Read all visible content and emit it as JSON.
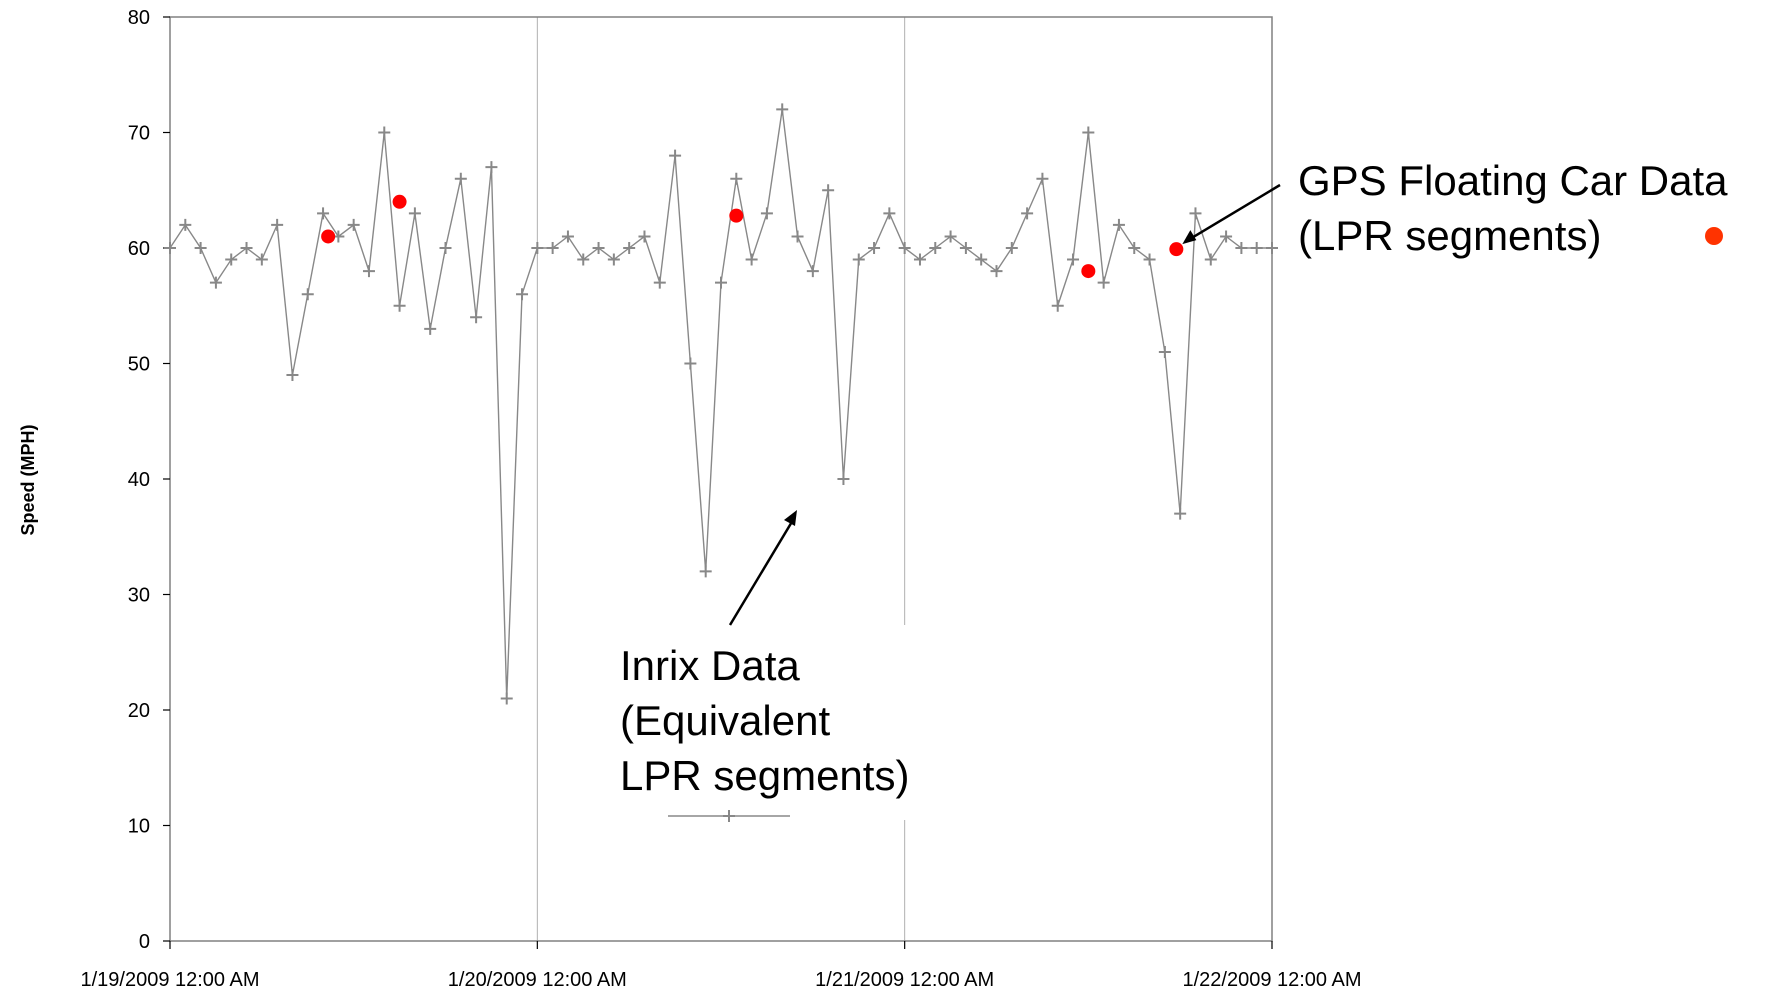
{
  "chart_data": {
    "type": "line",
    "title": "",
    "xlabel": "",
    "ylabel": "Speed (MPH)",
    "ylim": [
      0,
      80
    ],
    "y_ticks": [
      0,
      10,
      20,
      30,
      40,
      50,
      60,
      70,
      80
    ],
    "xlim": [
      "1/19/2009 12:00 AM",
      "1/22/2009 12:00 AM"
    ],
    "x_ticks": [
      "1/19/2009 12:00 AM",
      "1/20/2009 12:00 AM",
      "1/21/2009 12:00 AM",
      "1/22/2009 12:00 AM"
    ],
    "grid": "vertical lines at day boundaries",
    "legend": "annotations at right",
    "colors": {
      "inrix": "#888888",
      "gps": "#ff0000",
      "axis": "#808080"
    },
    "series": [
      {
        "name": "Inrix Data (Equivalent LPR segments)",
        "marker": "plus",
        "x": [
          "1/19/2009 12:00 AM",
          "1/19/2009 1:00 AM",
          "1/19/2009 2:00 AM",
          "1/19/2009 3:00 AM",
          "1/19/2009 4:00 AM",
          "1/19/2009 5:00 AM",
          "1/19/2009 6:00 AM",
          "1/19/2009 7:00 AM",
          "1/19/2009 8:00 AM",
          "1/19/2009 9:00 AM",
          "1/19/2009 10:00 AM",
          "1/19/2009 11:00 AM",
          "1/19/2009 12:00 PM",
          "1/19/2009 1:00 PM",
          "1/19/2009 2:00 PM",
          "1/19/2009 3:00 PM",
          "1/19/2009 4:00 PM",
          "1/19/2009 5:00 PM",
          "1/19/2009 6:00 PM",
          "1/19/2009 7:00 PM",
          "1/19/2009 8:00 PM",
          "1/19/2009 9:00 PM",
          "1/19/2009 10:00 PM",
          "1/19/2009 11:00 PM",
          "1/20/2009 12:00 AM",
          "1/20/2009 1:00 AM",
          "1/20/2009 2:00 AM",
          "1/20/2009 3:00 AM",
          "1/20/2009 4:00 AM",
          "1/20/2009 5:00 AM",
          "1/20/2009 6:00 AM",
          "1/20/2009 7:00 AM",
          "1/20/2009 8:00 AM",
          "1/20/2009 9:00 AM",
          "1/20/2009 10:00 AM",
          "1/20/2009 11:00 AM",
          "1/20/2009 12:00 PM",
          "1/20/2009 1:00 PM",
          "1/20/2009 2:00 PM",
          "1/20/2009 3:00 PM",
          "1/20/2009 4:00 PM",
          "1/20/2009 5:00 PM",
          "1/20/2009 6:00 PM",
          "1/20/2009 7:00 PM",
          "1/20/2009 8:00 PM",
          "1/20/2009 9:00 PM",
          "1/20/2009 10:00 PM",
          "1/20/2009 11:00 PM",
          "1/21/2009 12:00 AM",
          "1/21/2009 1:00 AM",
          "1/21/2009 2:00 AM",
          "1/21/2009 3:00 AM",
          "1/21/2009 4:00 AM",
          "1/21/2009 5:00 AM",
          "1/21/2009 6:00 AM",
          "1/21/2009 7:00 AM",
          "1/21/2009 8:00 AM",
          "1/21/2009 9:00 AM",
          "1/21/2009 10:00 AM",
          "1/21/2009 11:00 AM",
          "1/21/2009 12:00 PM",
          "1/21/2009 1:00 PM",
          "1/21/2009 2:00 PM",
          "1/21/2009 3:00 PM",
          "1/21/2009 4:00 PM",
          "1/21/2009 5:00 PM",
          "1/21/2009 6:00 PM",
          "1/21/2009 7:00 PM",
          "1/21/2009 8:00 PM",
          "1/21/2009 9:00 PM",
          "1/21/2009 10:00 PM",
          "1/21/2009 11:00 PM",
          "1/22/2009 12:00 AM"
        ],
        "y": [
          60,
          62,
          60,
          57,
          59,
          60,
          59,
          62,
          49,
          56,
          63,
          61,
          62,
          58,
          70,
          55,
          63,
          53,
          60,
          66,
          54,
          67,
          21,
          56,
          60,
          60,
          61,
          59,
          60,
          59,
          60,
          61,
          57,
          68,
          50,
          32,
          57,
          66,
          59,
          63,
          72,
          61,
          58,
          65,
          40,
          59,
          60,
          63,
          60,
          59,
          60,
          61,
          60,
          59,
          58,
          60,
          63,
          66,
          55,
          59,
          70,
          57,
          62,
          60,
          59,
          51,
          37,
          63,
          59,
          61,
          60,
          60,
          60
        ]
      },
      {
        "name": "GPS Floating Car Data (LPR segments)",
        "marker": "dot",
        "x": [
          "1/19/2009 10:20 AM",
          "1/19/2009 3:00 PM",
          "1/20/2009 1:00 PM",
          "1/21/2009 12:00 PM",
          "1/21/2009 5:45 PM"
        ],
        "y": [
          61,
          64,
          62.8,
          58,
          59.9
        ]
      }
    ],
    "annotations": [
      {
        "lines": [
          "GPS Floating Car Data",
          "(LPR segments)"
        ]
      },
      {
        "lines": [
          "Inrix Data",
          "(Equivalent",
          "LPR segments)"
        ]
      }
    ]
  }
}
